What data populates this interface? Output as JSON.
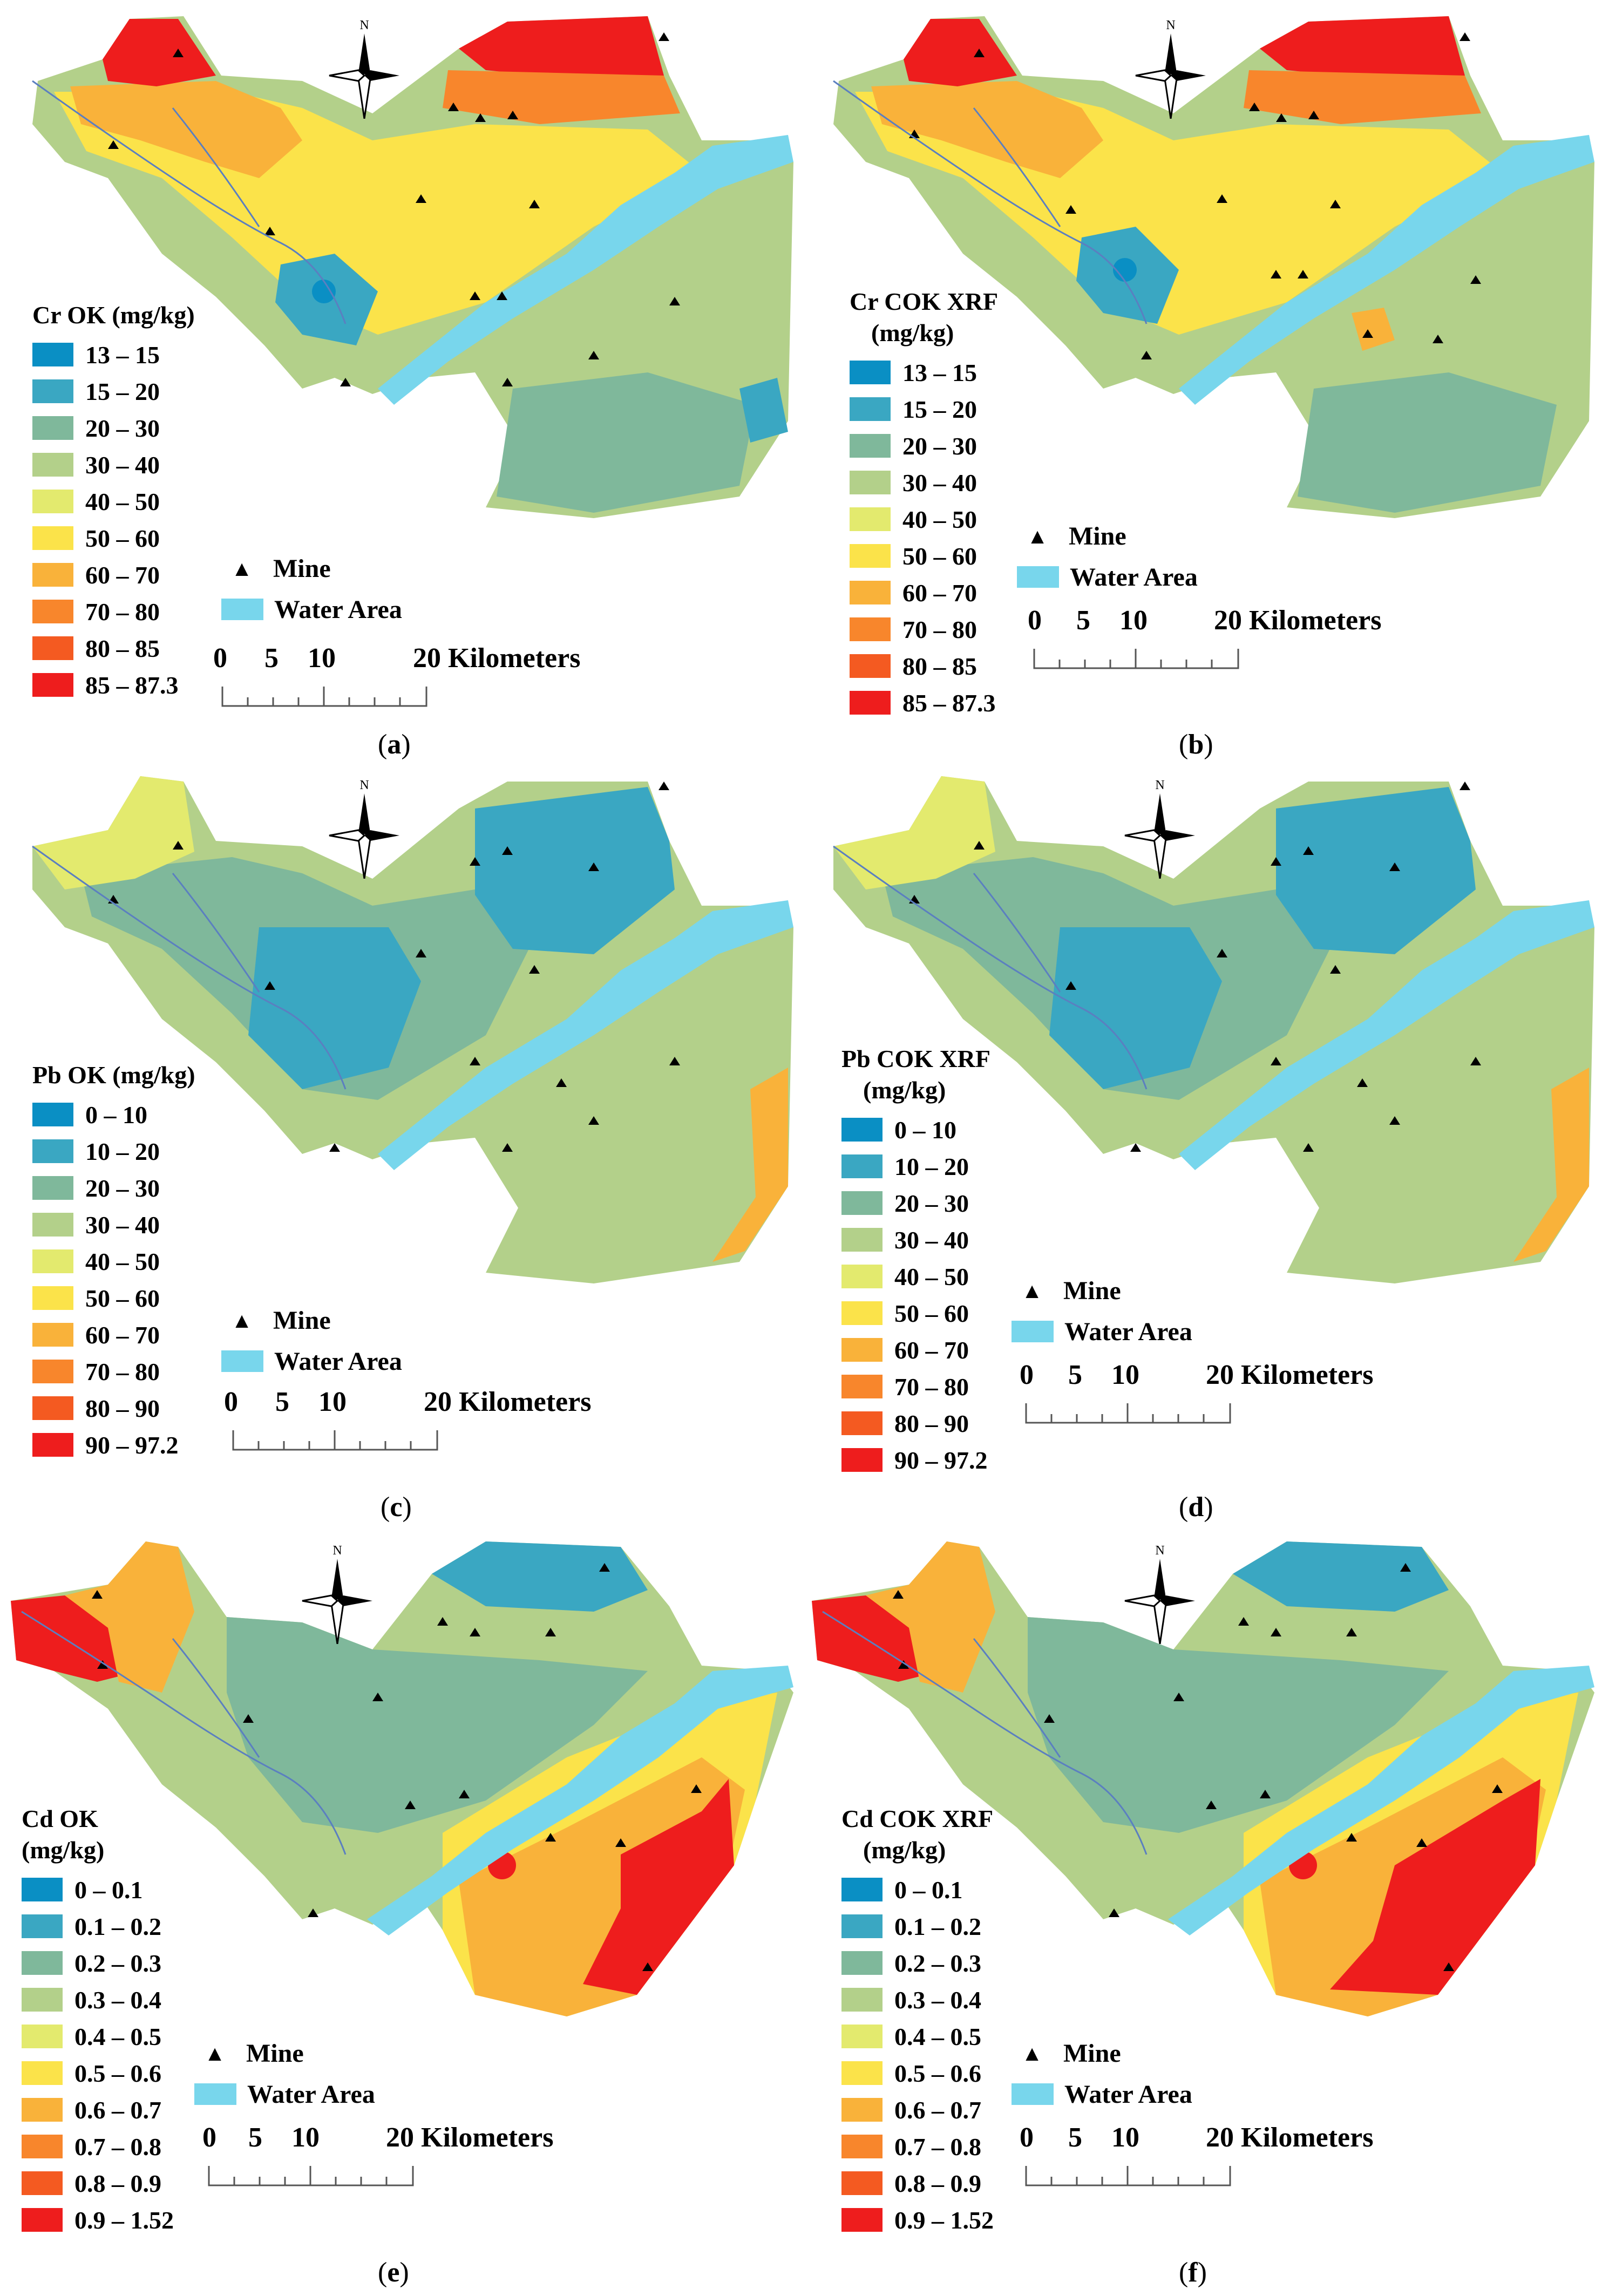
{
  "colors": {
    "ramp": [
      "#0a8fc4",
      "#3aa7c2",
      "#7fb89b",
      "#b3d08a",
      "#e3ea6e",
      "#fbe34a",
      "#f9b23a",
      "#f8862c",
      "#f45a21",
      "#ee1d1d"
    ],
    "water": "#78d6ec",
    "mine": "#000000"
  },
  "common": {
    "mine_label": "Mine",
    "water_label": "Water Area",
    "scale_ticks": [
      "0",
      "5",
      "10",
      "20 Kilometers"
    ],
    "north_label": "N"
  },
  "panels": [
    {
      "id": "a",
      "caption": "a",
      "legend_title": [
        "Cr OK (mg/kg)"
      ],
      "legend_items": [
        "13 – 15",
        "15 – 20",
        "20 – 30",
        "30 – 40",
        "40 – 50",
        "50 – 60",
        "60 – 70",
        "70 – 80",
        "80 – 85",
        "85 – 87.3"
      ]
    },
    {
      "id": "b",
      "caption": "b",
      "legend_title": [
        "Cr COK XRF",
        "(mg/kg)"
      ],
      "legend_items": [
        "13 – 15",
        "15 – 20",
        "20 – 30",
        "30 – 40",
        "40 – 50",
        "50 – 60",
        "60 – 70",
        "70 – 80",
        "80 – 85",
        "85 – 87.3"
      ]
    },
    {
      "id": "c",
      "caption": "c",
      "legend_title": [
        "Pb OK (mg/kg)"
      ],
      "legend_items": [
        "0 – 10",
        "10 – 20",
        "20 – 30",
        "30 – 40",
        "40 – 50",
        "50 – 60",
        "60 – 70",
        "70 – 80",
        "80 – 90",
        "90 – 97.2"
      ]
    },
    {
      "id": "d",
      "caption": "d",
      "legend_title": [
        "Pb COK XRF",
        "(mg/kg)"
      ],
      "legend_items": [
        "0 – 10",
        "10 – 20",
        "20 – 30",
        "30 – 40",
        "40 – 50",
        "50 – 60",
        "60 – 70",
        "70 – 80",
        "80 – 90",
        "90 – 97.2"
      ]
    },
    {
      "id": "e",
      "caption": "e",
      "legend_title": [
        "Cd OK",
        "(mg/kg)"
      ],
      "legend_items": [
        "0 – 0.1",
        "0.1 – 0.2",
        "0.2 – 0.3",
        "0.3 – 0.4",
        "0.4 – 0.5",
        "0.5 – 0.6",
        "0.6 – 0.7",
        "0.7 – 0.8",
        "0.8 – 0.9",
        "0.9 – 1.52"
      ]
    },
    {
      "id": "f",
      "caption": "f",
      "legend_title": [
        "Cd COK XRF",
        "(mg/kg)"
      ],
      "legend_items": [
        "0 – 0.1",
        "0.1 – 0.2",
        "0.2 – 0.3",
        "0.3 – 0.4",
        "0.4 – 0.5",
        "0.5 – 0.6",
        "0.6 – 0.7",
        "0.7 – 0.8",
        "0.8 – 0.9",
        "0.9 – 1.52"
      ]
    }
  ]
}
